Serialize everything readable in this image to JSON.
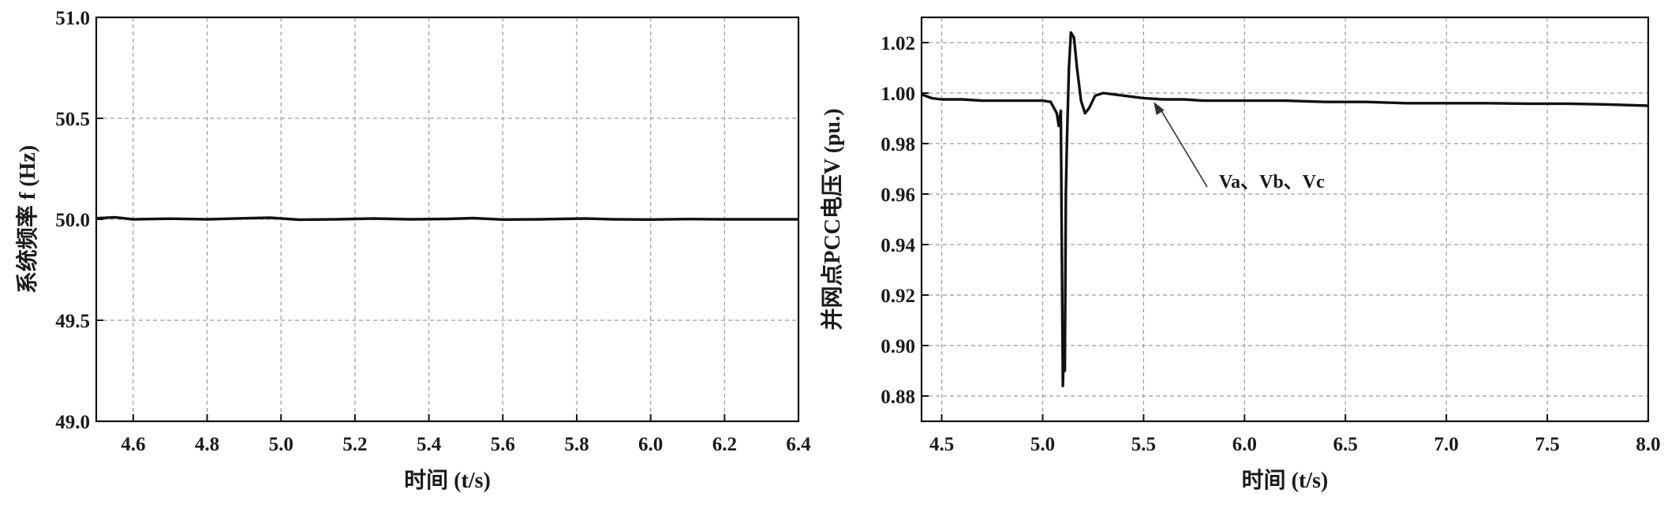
{
  "chart_data": [
    {
      "type": "line",
      "xlabel": "时间 (t/s)",
      "ylabel": "系统频率 f (Hz)",
      "xlim": [
        4.5,
        6.4
      ],
      "ylim": [
        49.0,
        51.0
      ],
      "xticks": [
        "4.6",
        "4.8",
        "5.0",
        "5.2",
        "5.4",
        "5.6",
        "5.8",
        "6.0",
        "6.2",
        "6.4"
      ],
      "yticks": [
        "49.0",
        "49.5",
        "50.0",
        "50.5",
        "51.0"
      ],
      "grid": true,
      "series": [
        {
          "x": [
            4.5,
            4.55,
            4.6,
            4.7,
            4.8,
            4.9,
            4.97,
            5.05,
            5.15,
            5.25,
            5.35,
            5.45,
            5.52,
            5.6,
            5.7,
            5.82,
            5.9,
            6.0,
            6.1,
            6.2,
            6.3,
            6.4
          ],
          "y": [
            50.005,
            50.01,
            50.0,
            50.003,
            50.0,
            50.005,
            50.008,
            49.998,
            50.0,
            50.004,
            50.0,
            50.002,
            50.006,
            49.999,
            50.0,
            50.004,
            50.0,
            49.999,
            50.001,
            50.0,
            50.0,
            50.0
          ]
        }
      ]
    },
    {
      "type": "line",
      "xlabel": "时间 (t/s)",
      "ylabel": "并网点PCC电压V (pu.)",
      "xlim": [
        4.4,
        8.0
      ],
      "ylim": [
        0.87,
        1.03
      ],
      "xticks": [
        "4.5",
        "5.0",
        "5.5",
        "6.0",
        "6.5",
        "7.0",
        "7.5",
        "8.0"
      ],
      "yticks": [
        "0.88",
        "0.90",
        "0.92",
        "0.94",
        "0.96",
        "0.98",
        "1.00",
        "1.02"
      ],
      "grid": true,
      "annotation": "Va、Vb、Vc",
      "series": [
        {
          "x": [
            4.4,
            4.45,
            4.5,
            4.6,
            4.7,
            4.8,
            4.9,
            5.0,
            5.04,
            5.07,
            5.08,
            5.085,
            5.09,
            5.1,
            5.105,
            5.11,
            5.115,
            5.12,
            5.13,
            5.14,
            5.155,
            5.17,
            5.19,
            5.21,
            5.23,
            5.26,
            5.3,
            5.35,
            5.4,
            5.5,
            5.6,
            5.7,
            5.8,
            6.0,
            6.2,
            6.4,
            6.6,
            6.8,
            7.0,
            7.2,
            7.4,
            7.6,
            7.8,
            8.0
          ],
          "y": [
            0.9995,
            0.998,
            0.9975,
            0.9975,
            0.997,
            0.997,
            0.997,
            0.997,
            0.9965,
            0.992,
            0.987,
            0.99,
            0.993,
            0.884,
            0.9,
            0.89,
            0.96,
            0.98,
            1.01,
            1.024,
            1.022,
            1.01,
            0.997,
            0.992,
            0.994,
            0.999,
            1.0,
            0.9995,
            0.999,
            0.998,
            0.9975,
            0.9975,
            0.997,
            0.997,
            0.997,
            0.9965,
            0.9965,
            0.996,
            0.996,
            0.996,
            0.9958,
            0.9958,
            0.9955,
            0.995
          ]
        }
      ]
    }
  ]
}
